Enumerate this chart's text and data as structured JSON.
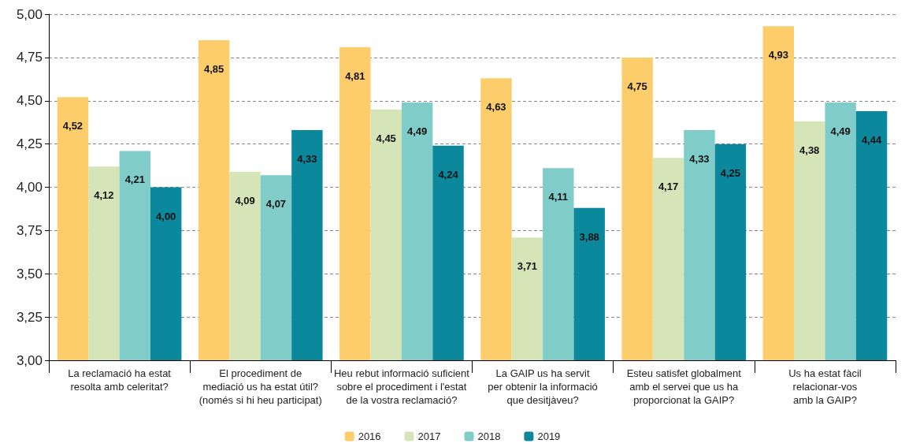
{
  "chart_data": {
    "type": "bar",
    "categories": [
      "La reclamació ha estat\nresolta amb celeritat?",
      "El procediment de\nmediació us ha estat útil?\n(només si hi heu participat)",
      "Heu rebut informació suficient\nsobre el procediment i l'estat\nde la vostra reclamació?",
      "La GAIP us ha servit\nper obtenir la informació\nque desitjàveu?",
      "Esteu satisfet globalment\namb el servei que us ha\nproporcionat la GAIP?",
      "Us ha estat fàcil\nrelacionar-vos\namb la GAIP?"
    ],
    "series": [
      {
        "name": "2016",
        "color": "#fecd6b",
        "values": [
          4.52,
          4.85,
          4.81,
          4.63,
          4.75,
          4.93
        ],
        "value_labels": [
          "4,52",
          "4,85",
          "4,81",
          "4,63",
          "4,75",
          "4,93"
        ]
      },
      {
        "name": "2017",
        "color": "#d5e5b7",
        "values": [
          4.12,
          4.09,
          4.45,
          3.71,
          4.17,
          4.38
        ],
        "value_labels": [
          "4,12",
          "4,09",
          "4,45",
          "3,71",
          "4,17",
          "4,38"
        ]
      },
      {
        "name": "2018",
        "color": "#80ccc9",
        "values": [
          4.21,
          4.07,
          4.49,
          4.11,
          4.33,
          4.49
        ],
        "value_labels": [
          "4,21",
          "4,07",
          "4,49",
          "4,11",
          "4,33",
          "4,49"
        ]
      },
      {
        "name": "2019",
        "color": "#0b889c",
        "values": [
          4.0,
          4.33,
          4.24,
          3.88,
          4.25,
          4.44
        ],
        "value_labels": [
          "4,00",
          "4,33",
          "4,24",
          "3,88",
          "4,25",
          "4,44"
        ]
      }
    ],
    "ylim": [
      3,
      5
    ],
    "yticks": [
      {
        "value": 3,
        "label": "3,00"
      },
      {
        "value": 3.25,
        "label": "3,25"
      },
      {
        "value": 3.5,
        "label": "3,50"
      },
      {
        "value": 3.75,
        "label": "3,75"
      },
      {
        "value": 4,
        "label": "4,00"
      },
      {
        "value": 4.25,
        "label": "4,25"
      },
      {
        "value": 4.5,
        "label": "4,50"
      },
      {
        "value": 4.75,
        "label": "4,75"
      },
      {
        "value": 5,
        "label": "5,00"
      }
    ],
    "grid": "y",
    "legend": "bottom"
  }
}
